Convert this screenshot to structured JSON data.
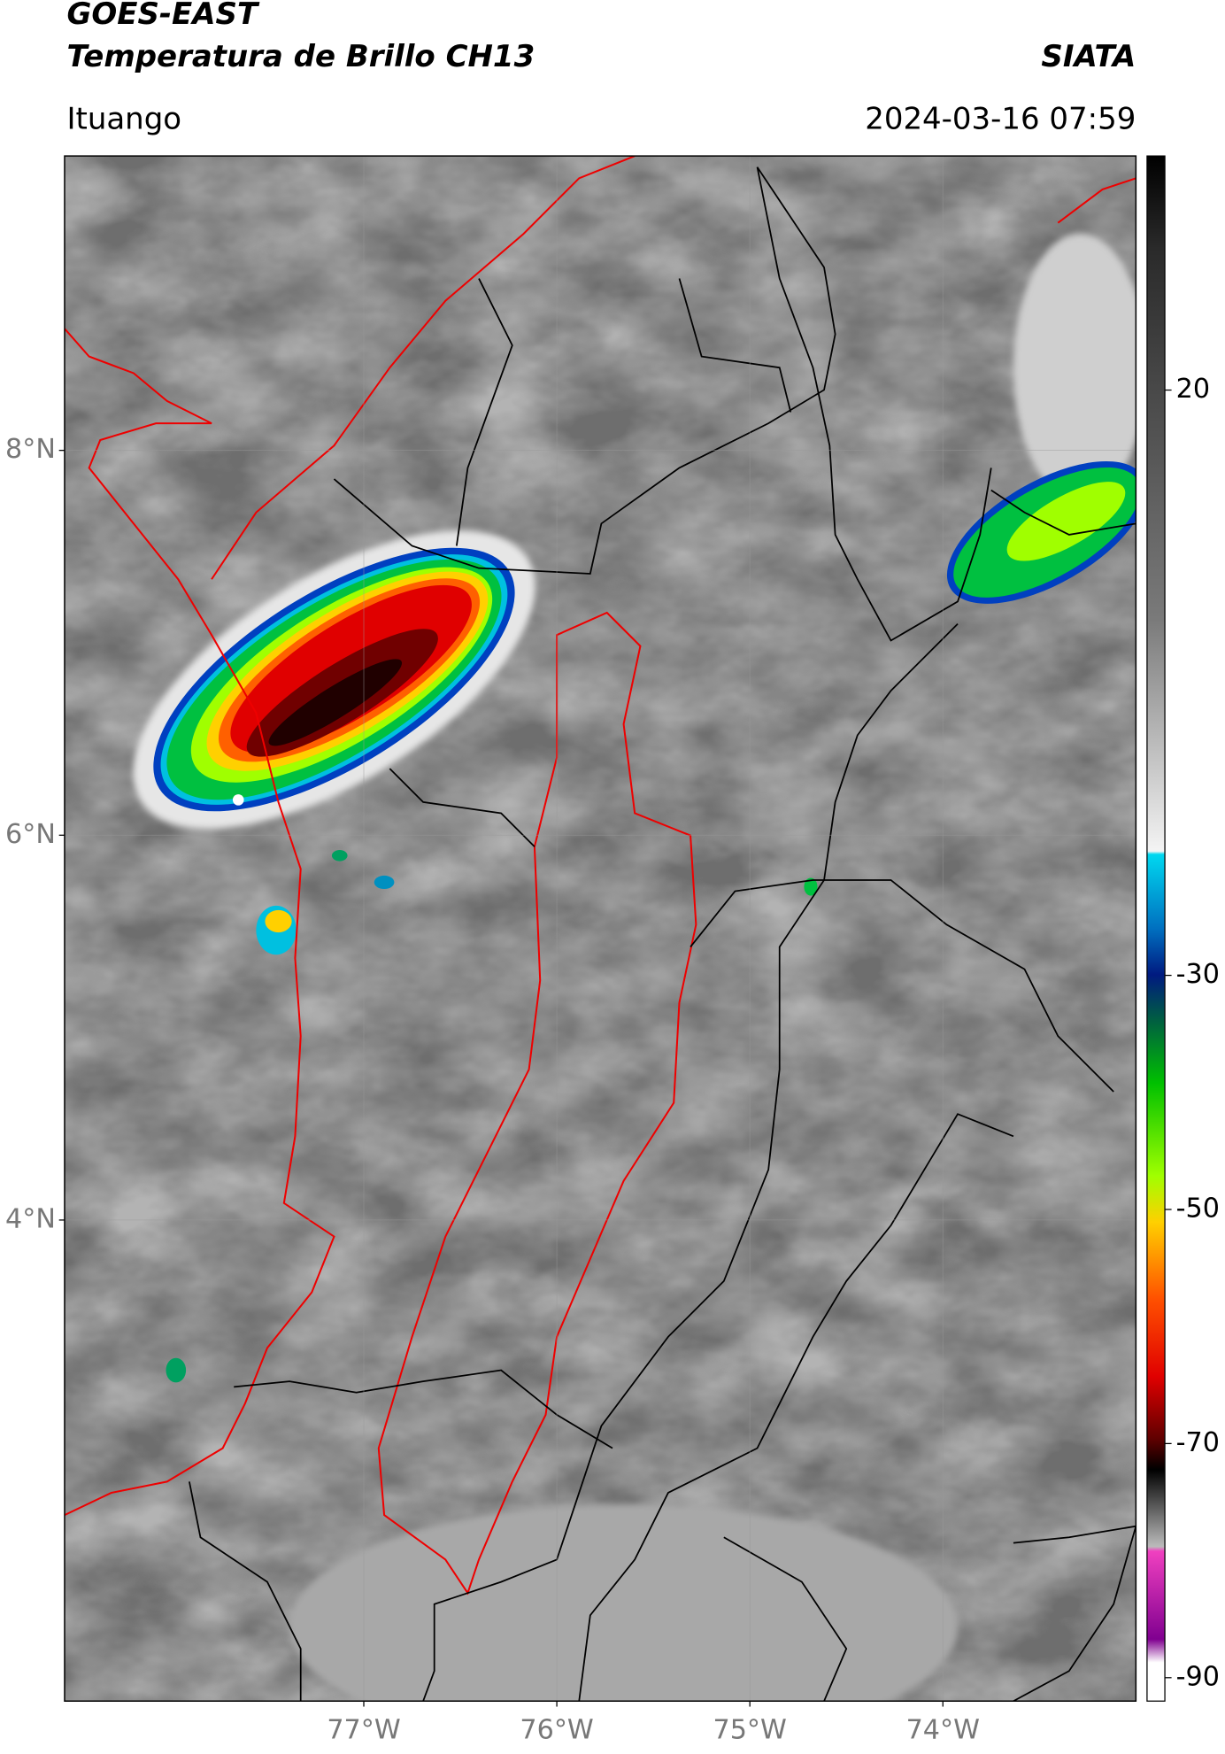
{
  "header": {
    "title": "GOES-EAST",
    "subtitle": "Temperatura de Brillo CH13",
    "source": "SIATA",
    "location": "Ituango",
    "datetime": "2024-03-16 07:59"
  },
  "map": {
    "xlim": [
      -78.55,
      -73
    ],
    "ylim": [
      1.5,
      9.53
    ],
    "xticks": [
      {
        "value": -77,
        "label": "77°W"
      },
      {
        "value": -76,
        "label": "76°W"
      },
      {
        "value": -75,
        "label": "75°W"
      },
      {
        "value": -74,
        "label": "74°W"
      }
    ],
    "yticks": [
      {
        "value": 8,
        "label": "8°N"
      },
      {
        "value": 6,
        "label": "6°N"
      },
      {
        "value": 4,
        "label": "4°N"
      }
    ]
  },
  "colorbar": {
    "lim": [
      -92,
      40
    ],
    "ticks": [
      20,
      -30,
      -50,
      -70,
      -90
    ]
  }
}
